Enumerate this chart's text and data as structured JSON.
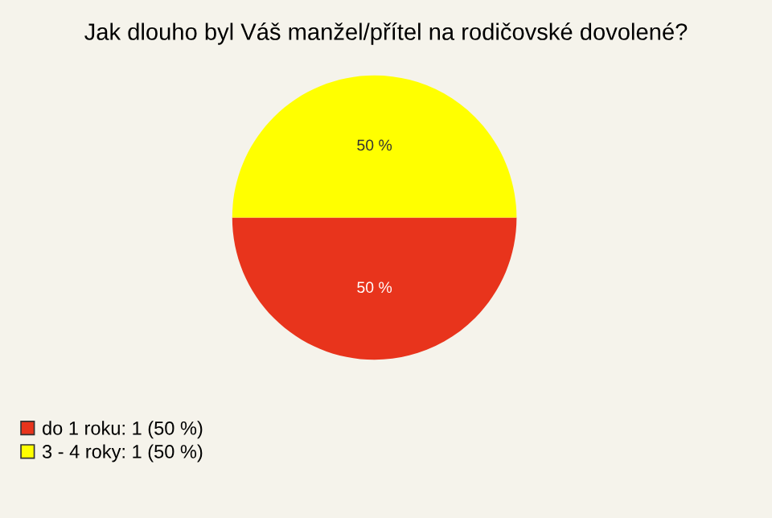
{
  "chart_data": {
    "type": "pie",
    "title": "Jak dlouho byl Váš manžel/přítel na rodičovské dovolené?",
    "categories": [
      "do 1 roku: 1 (50 %)",
      "3 - 4 roky: 1 (50 %)"
    ],
    "values": [
      50,
      50
    ],
    "colors": [
      "#e8341c",
      "#ffff00"
    ],
    "value_labels": [
      "50 %",
      "50 %"
    ],
    "legend": "bottom left"
  }
}
